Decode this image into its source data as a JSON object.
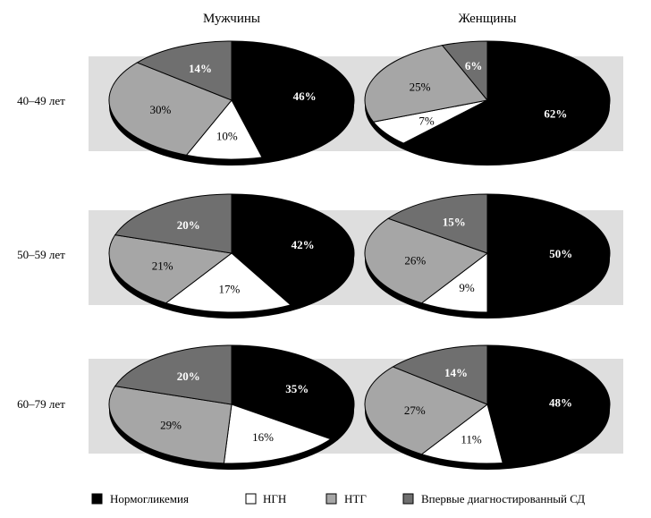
{
  "columns": [
    "Мужчины",
    "Женщины"
  ],
  "rows": [
    "40–49 лет",
    "50–59 лет",
    "60–79 лет"
  ],
  "legend": [
    {
      "label": "Нормогликемия",
      "color": "#000000"
    },
    {
      "label": "НГН",
      "color": "#ffffff"
    },
    {
      "label": "НТГ",
      "color": "#a6a6a6"
    },
    {
      "label": "Впервые диагностированный СД",
      "color": "#6f6f6f"
    }
  ],
  "chart_data": [
    {
      "type": "pie",
      "column": "Мужчины",
      "row": "40–49 лет",
      "categories": [
        "Нормогликемия",
        "НГН",
        "НТГ",
        "Впервые диагностированный СД"
      ],
      "values": [
        46,
        10,
        30,
        14
      ],
      "labels": [
        "46%",
        "10%",
        "30%",
        "14%"
      ]
    },
    {
      "type": "pie",
      "column": "Женщины",
      "row": "40–49 лет",
      "categories": [
        "Нормогликемия",
        "НГН",
        "НТГ",
        "Впервые диагностированный СД"
      ],
      "values": [
        62,
        7,
        25,
        6
      ],
      "labels": [
        "62%",
        "7%",
        "25%",
        "6%"
      ]
    },
    {
      "type": "pie",
      "column": "Мужчины",
      "row": "50–59 лет",
      "categories": [
        "Нормогликемия",
        "НГН",
        "НТГ",
        "Впервые диагностированный СД"
      ],
      "values": [
        42,
        17,
        21,
        20
      ],
      "labels": [
        "42%",
        "17%",
        "21%",
        "20%"
      ]
    },
    {
      "type": "pie",
      "column": "Женщины",
      "row": "50–59 лет",
      "categories": [
        "Нормогликемия",
        "НГН",
        "НТГ",
        "Впервые диагностированный СД"
      ],
      "values": [
        50,
        9,
        26,
        15
      ],
      "labels": [
        "50%",
        "9%",
        "26%",
        "15%"
      ]
    },
    {
      "type": "pie",
      "column": "Мужчины",
      "row": "60–79 лет",
      "categories": [
        "Нормогликемия",
        "НГН",
        "НТГ",
        "Впервые диагностированный СД"
      ],
      "values": [
        35,
        16,
        29,
        20
      ],
      "labels": [
        "35%",
        "16%",
        "29%",
        "20%"
      ]
    },
    {
      "type": "pie",
      "column": "Женщины",
      "row": "60–79 лет",
      "categories": [
        "Нормогликемия",
        "НГН",
        "НТГ",
        "Впервые диагностированный СД"
      ],
      "values": [
        48,
        11,
        27,
        14
      ],
      "labels": [
        "48%",
        "11%",
        "27%",
        "14%"
      ]
    }
  ]
}
